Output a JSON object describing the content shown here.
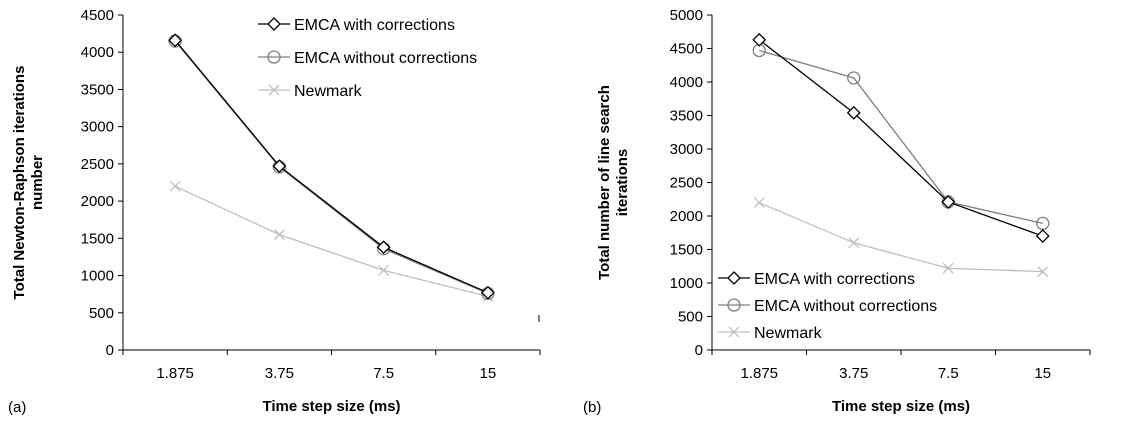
{
  "chart_data": [
    {
      "type": "line",
      "panel_label": "(a)",
      "title": "",
      "xlabel": "Time step size (ms)",
      "ylabel_lines": [
        "Total Newton-Raphson iterations",
        "number"
      ],
      "categories": [
        "1.875",
        "3.75",
        "7.5",
        "15"
      ],
      "ylim": [
        0,
        4500
      ],
      "yticks": [
        0,
        500,
        1000,
        1500,
        2000,
        2500,
        3000,
        3500,
        4000,
        4500
      ],
      "grid": false,
      "legend_placement": "top-right",
      "series": [
        {
          "name": "EMCA with corrections",
          "marker": "diamond",
          "color": "#000000",
          "values": [
            4160,
            2470,
            1380,
            770
          ]
        },
        {
          "name": "EMCA without corrections",
          "marker": "circle",
          "color": "#7f7f7f",
          "values": [
            4150,
            2460,
            1360,
            760
          ]
        },
        {
          "name": "Newmark",
          "marker": "x",
          "color": "#bfbfbf",
          "values": [
            2200,
            1550,
            1070,
            720
          ]
        }
      ]
    },
    {
      "type": "line",
      "panel_label": "(b)",
      "title": "",
      "xlabel": "Time step size (ms)",
      "ylabel_lines": [
        "Total number of line search",
        "iterations"
      ],
      "categories": [
        "1.875",
        "3.75",
        "7.5",
        "15"
      ],
      "ylim": [
        0,
        5000
      ],
      "yticks": [
        0,
        500,
        1000,
        1500,
        2000,
        2500,
        3000,
        3500,
        4000,
        4500,
        5000
      ],
      "grid": false,
      "legend_placement": "bottom-left",
      "series": [
        {
          "name": "EMCA with corrections",
          "marker": "diamond",
          "color": "#000000",
          "values": [
            4630,
            3540,
            2210,
            1700
          ]
        },
        {
          "name": "EMCA without corrections",
          "marker": "circle",
          "color": "#7f7f7f",
          "values": [
            4470,
            4060,
            2210,
            1890
          ]
        },
        {
          "name": "Newmark",
          "marker": "x",
          "color": "#bfbfbf",
          "values": [
            2200,
            1600,
            1220,
            1170
          ]
        }
      ]
    }
  ]
}
